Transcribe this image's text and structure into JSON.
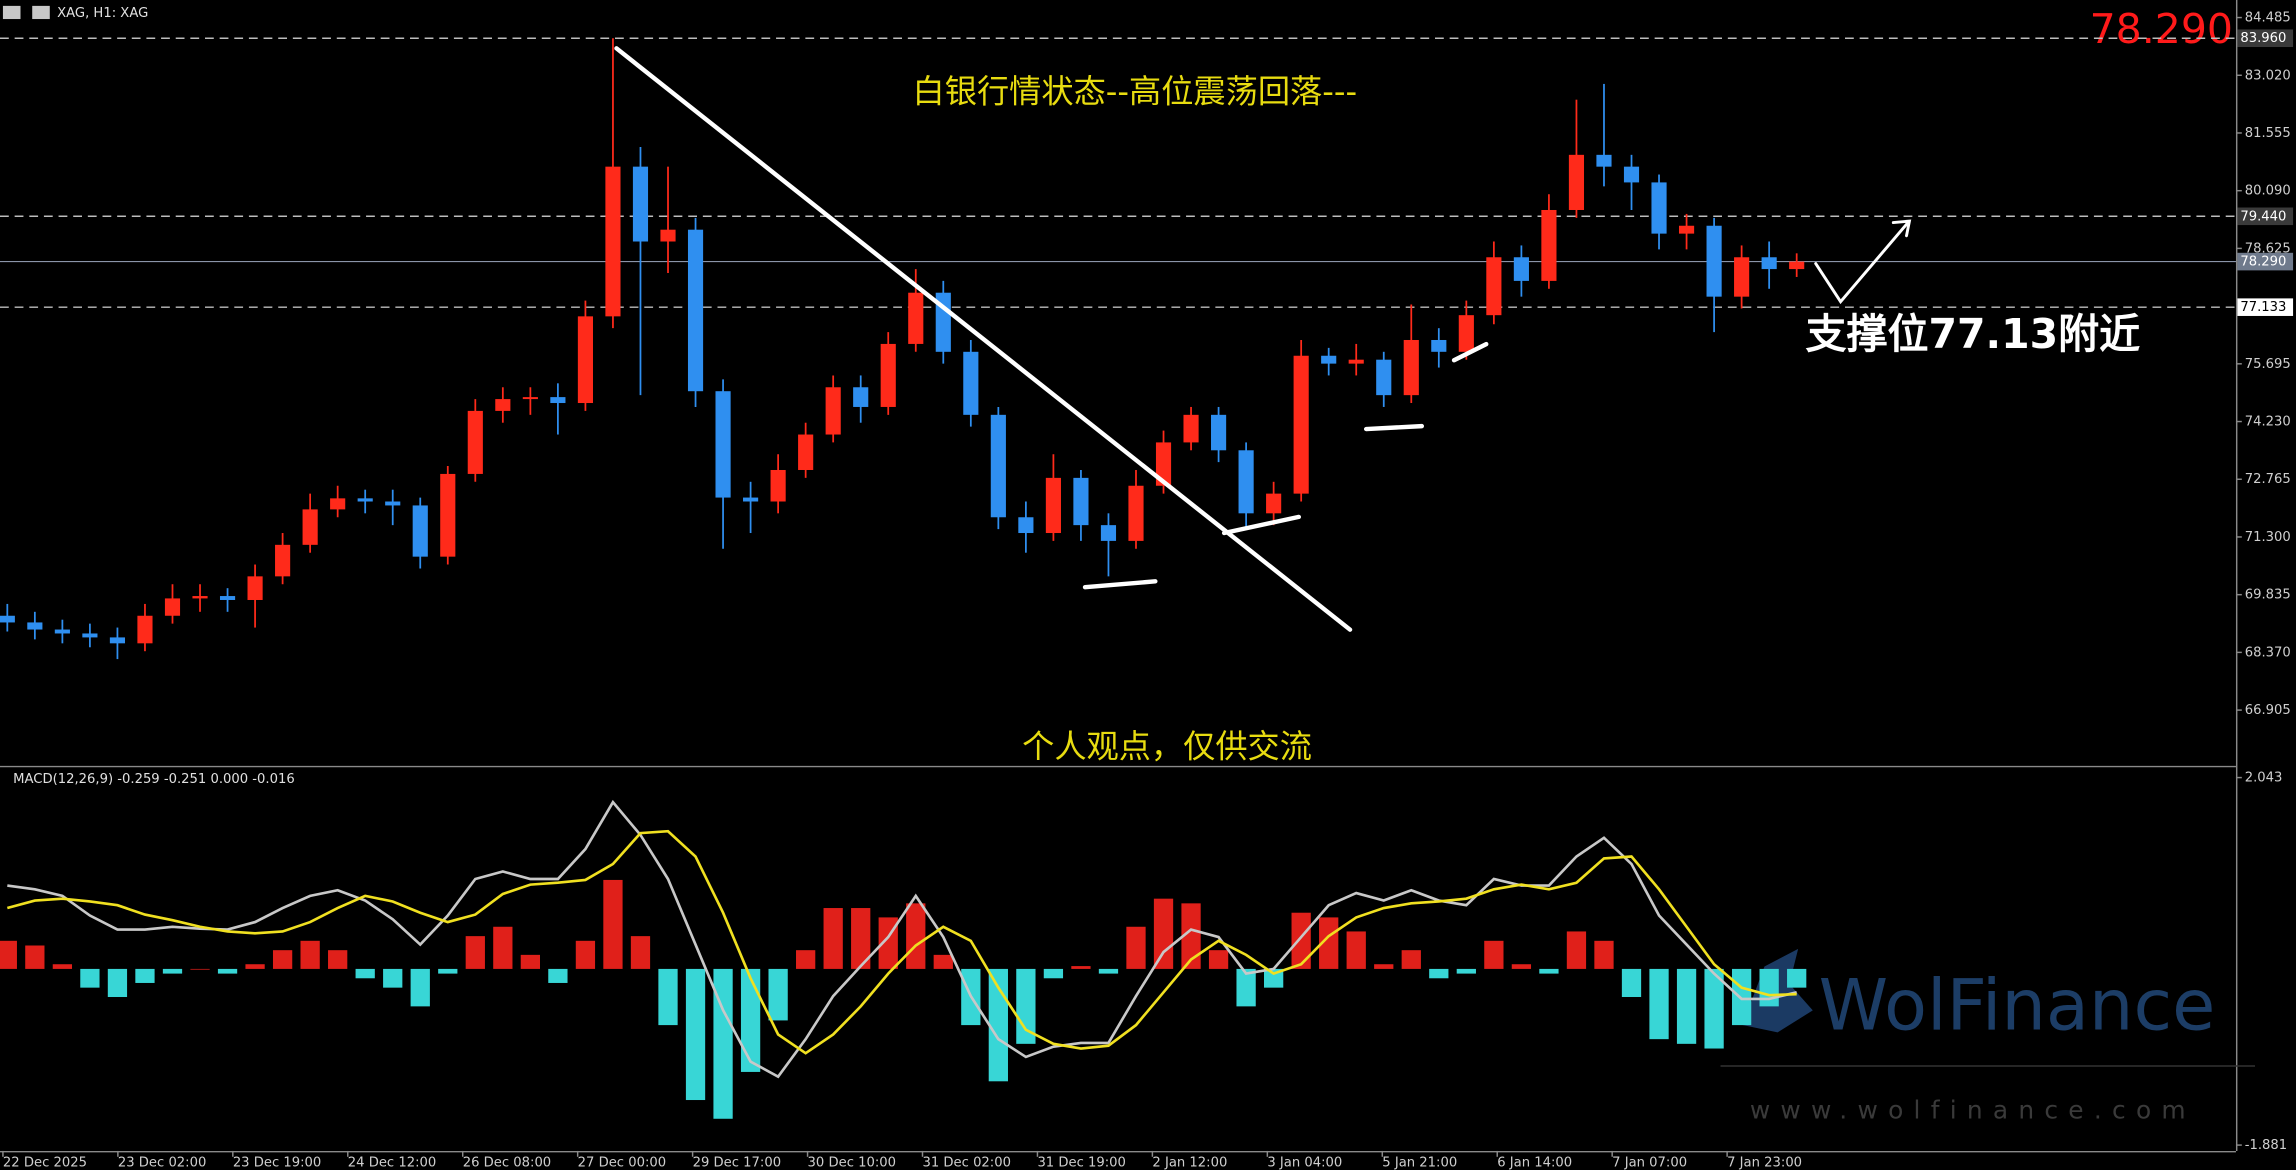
{
  "chart_data": [
    {
      "type": "candlestick",
      "symbol_label": "XAG, H1: XAG",
      "title": "白银行情状态--高位震荡回落---",
      "footer_note": "个人观点，仅供交流",
      "support_note": "支撑位77.13附近",
      "current_price": 78.29,
      "current_price_label": "78.290",
      "levels": [
        {
          "value": 83.96,
          "label": "83.960"
        },
        {
          "value": 79.44,
          "label": "79.440"
        },
        77.133
      ],
      "up_color": "#ff2a1a",
      "down_color": "#2f8ff0",
      "ylim": [
        65.49,
        84.93
      ],
      "yticks": [
        84.485,
        {
          "value": 83.02,
          "label": "83.020"
        },
        81.555,
        {
          "value": 80.09,
          "label": "80.090"
        },
        78.625,
        75.695,
        {
          "value": 74.23,
          "label": "74.230"
        },
        72.765,
        {
          "value": 71.3,
          "label": "71.300"
        },
        69.835,
        {
          "value": 68.37,
          "label": "68.370"
        },
        66.905
      ],
      "open": [
        69.3,
        69.13,
        68.95,
        68.85,
        68.75,
        68.6,
        69.3,
        69.74,
        69.8,
        69.7,
        70.3,
        71.1,
        72.0,
        72.28,
        72.2,
        72.1,
        70.8,
        72.9,
        74.5,
        74.8,
        74.85,
        74.7,
        76.9,
        80.7,
        78.8,
        79.1,
        75.0,
        72.3,
        72.2,
        73.0,
        73.9,
        75.1,
        74.6,
        76.2,
        77.5,
        76.0,
        74.4,
        71.8,
        71.4,
        72.8,
        71.6,
        71.2,
        72.6,
        73.7,
        74.4,
        73.5,
        71.9,
        72.4,
        75.9,
        75.7,
        75.8,
        74.9,
        76.3,
        76.0,
        76.93,
        78.4,
        77.8,
        79.6,
        81.0,
        80.7,
        80.3,
        79.0,
        79.2,
        77.4,
        78.4,
        78.1
      ],
      "high": [
        69.6,
        69.4,
        69.2,
        69.1,
        69.0,
        69.6,
        70.1,
        70.1,
        70.0,
        70.6,
        71.4,
        72.4,
        72.6,
        72.5,
        72.5,
        72.3,
        73.1,
        74.8,
        75.1,
        75.1,
        75.2,
        77.3,
        83.96,
        81.2,
        80.7,
        79.4,
        75.3,
        72.7,
        73.4,
        74.2,
        75.4,
        75.4,
        76.5,
        78.1,
        77.8,
        76.3,
        74.6,
        72.2,
        73.4,
        73.0,
        71.9,
        73.0,
        74.0,
        74.6,
        74.6,
        73.7,
        72.7,
        76.3,
        76.1,
        76.2,
        76.0,
        77.2,
        76.6,
        77.3,
        78.8,
        78.7,
        80.0,
        82.4,
        82.8,
        81.0,
        80.5,
        79.5,
        79.4,
        78.7,
        78.8,
        78.5
      ],
      "low": [
        68.9,
        68.7,
        68.6,
        68.5,
        68.2,
        68.4,
        69.1,
        69.4,
        69.4,
        69.0,
        70.1,
        70.9,
        71.8,
        71.9,
        71.6,
        70.5,
        70.6,
        72.7,
        74.2,
        74.4,
        73.9,
        74.5,
        76.6,
        74.9,
        78.0,
        74.6,
        71.0,
        71.4,
        71.9,
        72.8,
        73.7,
        74.2,
        74.4,
        76.0,
        75.7,
        74.1,
        71.5,
        70.9,
        71.2,
        71.2,
        70.3,
        71.0,
        72.4,
        73.5,
        73.2,
        71.5,
        71.6,
        72.2,
        75.4,
        75.4,
        74.6,
        74.7,
        75.6,
        75.8,
        76.7,
        77.4,
        77.6,
        79.4,
        80.2,
        79.6,
        78.6,
        78.6,
        76.5,
        77.1,
        77.6,
        77.9
      ],
      "close": [
        69.13,
        68.95,
        68.85,
        68.75,
        68.6,
        69.3,
        69.74,
        69.8,
        69.7,
        70.3,
        71.1,
        72.0,
        72.28,
        72.2,
        72.1,
        70.8,
        72.9,
        74.5,
        74.8,
        74.85,
        74.7,
        76.9,
        80.7,
        78.8,
        79.1,
        75.0,
        72.3,
        72.2,
        73.0,
        73.9,
        75.1,
        74.6,
        76.2,
        77.5,
        76.0,
        74.4,
        71.8,
        71.4,
        72.8,
        71.6,
        71.2,
        72.6,
        73.7,
        74.4,
        73.5,
        71.9,
        72.4,
        75.9,
        75.7,
        75.8,
        74.9,
        76.3,
        76.0,
        76.93,
        78.4,
        77.8,
        79.6,
        81.0,
        80.7,
        80.3,
        79.0,
        79.2,
        77.4,
        78.4,
        78.1,
        78.29
      ]
    },
    {
      "type": "macd",
      "title": "MACD(12,26,9) -0.259 -0.251 0.000 -0.016",
      "ylim": [
        -1.928,
        2.137
      ],
      "yticks": [
        2.043,
        -1.881
      ],
      "positive_color": "#e0201a",
      "negative_color": "#38d6d6",
      "macd_color": "#c8c8c8",
      "signal_color": "#f0e020",
      "histogram": [
        0.3,
        0.25,
        0.05,
        -0.2,
        -0.3,
        -0.15,
        -0.05,
        0.0,
        -0.05,
        0.05,
        0.2,
        0.3,
        0.2,
        -0.1,
        -0.2,
        -0.4,
        -0.05,
        0.35,
        0.45,
        0.15,
        -0.15,
        0.3,
        0.95,
        0.35,
        -0.6,
        -1.4,
        -1.6,
        -1.1,
        -0.55,
        0.2,
        0.65,
        0.65,
        0.55,
        0.7,
        0.15,
        -0.6,
        -1.2,
        -0.8,
        -0.1,
        0.03,
        -0.05,
        0.45,
        0.75,
        0.7,
        0.2,
        -0.4,
        -0.2,
        0.6,
        0.55,
        0.4,
        0.05,
        0.2,
        -0.1,
        -0.05,
        0.3,
        0.05,
        -0.05,
        0.4,
        0.3,
        -0.3,
        -0.75,
        -0.8,
        -0.85,
        -0.6,
        -0.4,
        -0.2
      ],
      "macd": [
        0.89,
        0.85,
        0.78,
        0.57,
        0.42,
        0.42,
        0.45,
        0.43,
        0.42,
        0.5,
        0.65,
        0.78,
        0.84,
        0.73,
        0.53,
        0.26,
        0.57,
        0.96,
        1.04,
        0.96,
        0.96,
        1.28,
        1.78,
        1.43,
        0.96,
        0.26,
        -0.44,
        -0.99,
        -1.15,
        -0.75,
        -0.29,
        0.03,
        0.34,
        0.78,
        0.34,
        -0.29,
        -0.75,
        -0.94,
        -0.83,
        -0.79,
        -0.79,
        -0.29,
        0.18,
        0.42,
        0.34,
        -0.05,
        0.0,
        0.34,
        0.68,
        0.81,
        0.73,
        0.84,
        0.73,
        0.68,
        0.96,
        0.89,
        0.89,
        1.2,
        1.4,
        1.12,
        0.57,
        0.26,
        -0.05,
        -0.32,
        -0.32,
        -0.25
      ],
      "signal": [
        0.65,
        0.73,
        0.75,
        0.72,
        0.68,
        0.58,
        0.52,
        0.45,
        0.4,
        0.38,
        0.4,
        0.5,
        0.65,
        0.78,
        0.72,
        0.6,
        0.5,
        0.58,
        0.8,
        0.9,
        0.92,
        0.95,
        1.12,
        1.45,
        1.47,
        1.2,
        0.6,
        -0.1,
        -0.7,
        -0.9,
        -0.7,
        -0.4,
        -0.05,
        0.25,
        0.45,
        0.3,
        -0.2,
        -0.65,
        -0.8,
        -0.85,
        -0.82,
        -0.6,
        -0.25,
        0.1,
        0.3,
        0.15,
        -0.05,
        0.05,
        0.35,
        0.55,
        0.65,
        0.7,
        0.72,
        0.75,
        0.85,
        0.9,
        0.85,
        0.92,
        1.18,
        1.2,
        0.85,
        0.45,
        0.05,
        -0.2,
        -0.28,
        -0.27
      ],
      "x_tick_labels": [
        "22 Dec 2025",
        "23 Dec 02:00",
        "23 Dec 19:00",
        "24 Dec 12:00",
        "26 Dec 08:00",
        "27 Dec 00:00",
        "29 Dec 17:00",
        "30 Dec 10:00",
        "31 Dec 02:00",
        "31 Dec 19:00",
        "2 Jan 12:00",
        "3 Jan 04:00",
        "5 Jan 21:00",
        "6 Jan 14:00",
        "7 Jan 07:00",
        "7 Jan 23:00"
      ],
      "watermark": "WolFinance",
      "watermark_url": "www.wolfinance.com"
    }
  ]
}
